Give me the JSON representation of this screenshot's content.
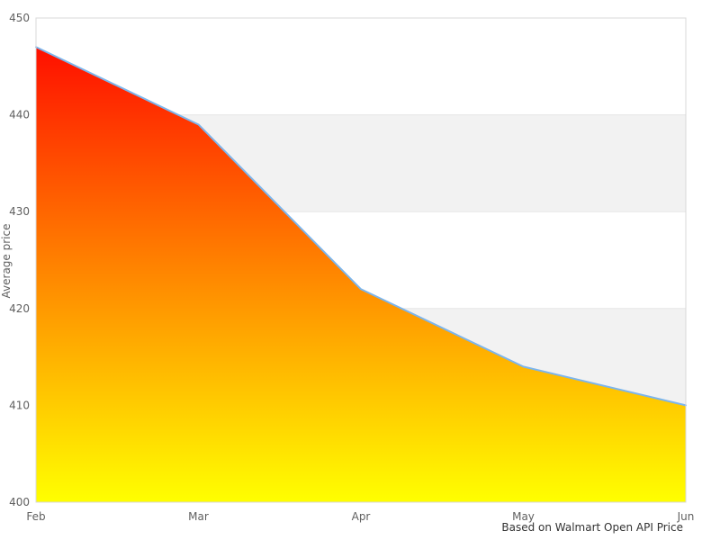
{
  "caption": {
    "text": "Based on Walmart Open API Price"
  },
  "chart_data": {
    "type": "area",
    "title": "",
    "xlabel": "",
    "ylabel": "Average price",
    "categories": [
      "Feb",
      "Mar",
      "Apr",
      "May",
      "Jun"
    ],
    "values": [
      447,
      439,
      422,
      414,
      410
    ],
    "ylim": [
      400,
      450
    ],
    "yticks": [
      400,
      410,
      420,
      430,
      440,
      450
    ],
    "legend": "none",
    "grid": "alternating-horizontal-bands",
    "colors": {
      "area_gradient_top": "#ff0000",
      "area_gradient_bottom": "#ffff00",
      "line": "#7cb5ec",
      "band_main": "#ffffff",
      "band_alt": "#f2f2f2",
      "grid_line": "#e6e6e6",
      "plot_border": "#d8d8d8",
      "axis_label": "#606060",
      "axis_title": "#606060",
      "caption_text": "#333333"
    }
  }
}
